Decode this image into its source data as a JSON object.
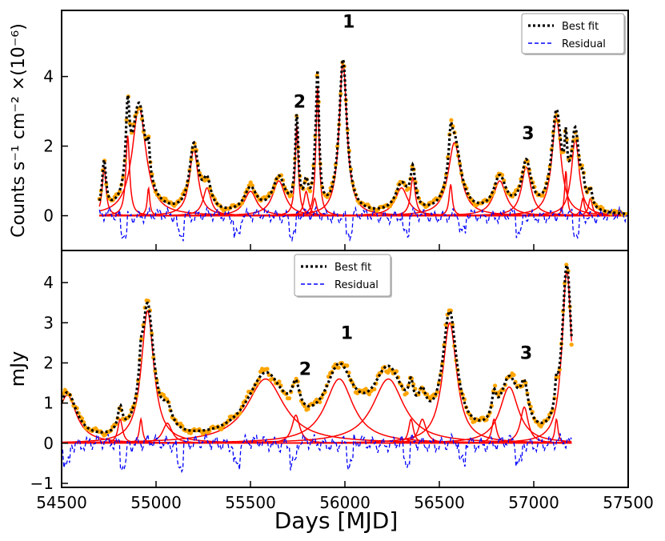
{
  "chart_data": [
    {
      "type": "line",
      "panel": "top",
      "ylabel": "Counts s⁻¹ cm⁻² ×(10⁻⁶)",
      "xlim": [
        54500,
        57500
      ],
      "ylim": [
        -1.0,
        5.9
      ],
      "yticks": [
        0,
        2,
        4
      ],
      "legend": {
        "placement": "top-right",
        "entries": [
          "Best fit",
          "Residual"
        ]
      },
      "colors": {
        "best_fit": "#000000",
        "residual": "#0000ff",
        "components": "#ff0000",
        "data": "#ffa500"
      },
      "annotations": [
        {
          "text": "1",
          "x": 56020,
          "y": 5.4
        },
        {
          "text": "2",
          "x": 55760,
          "y": 3.1
        },
        {
          "text": "3",
          "x": 56970,
          "y": 2.2
        }
      ],
      "baseline": 0.0,
      "flares": [
        {
          "t": 54725,
          "a": 1.4,
          "w": 12
        },
        {
          "t": 54850,
          "a": 2.3,
          "w": 12
        },
        {
          "t": 54910,
          "a": 3.1,
          "w": 45
        },
        {
          "t": 54960,
          "a": 0.8,
          "w": 8
        },
        {
          "t": 55200,
          "a": 1.9,
          "w": 28
        },
        {
          "t": 55270,
          "a": 0.8,
          "w": 25
        },
        {
          "t": 55500,
          "a": 0.7,
          "w": 40
        },
        {
          "t": 55650,
          "a": 1.0,
          "w": 40
        },
        {
          "t": 55745,
          "a": 2.6,
          "w": 10
        },
        {
          "t": 55795,
          "a": 0.7,
          "w": 15
        },
        {
          "t": 55840,
          "a": 0.5,
          "w": 12
        },
        {
          "t": 55855,
          "a": 3.7,
          "w": 10
        },
        {
          "t": 55990,
          "a": 4.4,
          "w": 25
        },
        {
          "t": 56300,
          "a": 0.8,
          "w": 40
        },
        {
          "t": 56360,
          "a": 1.1,
          "w": 15
        },
        {
          "t": 56560,
          "a": 0.9,
          "w": 10
        },
        {
          "t": 56580,
          "a": 2.1,
          "w": 40
        },
        {
          "t": 56820,
          "a": 1.0,
          "w": 40
        },
        {
          "t": 56960,
          "a": 1.4,
          "w": 30
        },
        {
          "t": 57120,
          "a": 2.8,
          "w": 30
        },
        {
          "t": 57170,
          "a": 1.3,
          "w": 8
        },
        {
          "t": 57220,
          "a": 2.2,
          "w": 25
        },
        {
          "t": 57260,
          "a": 0.5,
          "w": 10
        },
        {
          "t": 57300,
          "a": 0.5,
          "w": 12
        }
      ],
      "data_range": [
        54700,
        57500
      ],
      "residual_range": [
        54700,
        57500
      ]
    },
    {
      "type": "line",
      "panel": "bottom",
      "xlabel": "Days [MJD]",
      "ylabel": "mJy",
      "xlim": [
        54500,
        57500
      ],
      "ylim": [
        -1.1,
        4.8
      ],
      "xticks": [
        54500,
        55000,
        55500,
        56000,
        56500,
        57000,
        57500
      ],
      "yticks": [
        -1,
        0,
        1,
        2,
        3,
        4
      ],
      "legend": {
        "placement": "top-center",
        "entries": [
          "Best fit",
          "Residual"
        ]
      },
      "colors": {
        "best_fit": "#000000",
        "residual": "#0000ff",
        "components": "#ff0000",
        "data": "#ffa500"
      },
      "annotations": [
        {
          "text": "1",
          "x": 56010,
          "y": 2.6
        },
        {
          "text": "2",
          "x": 55790,
          "y": 1.7
        },
        {
          "text": "3",
          "x": 56960,
          "y": 2.1
        }
      ],
      "baseline": 0.0,
      "flares": [
        {
          "t": 54530,
          "a": 1.2,
          "w": 60
        },
        {
          "t": 54810,
          "a": 0.6,
          "w": 15
        },
        {
          "t": 54920,
          "a": 0.6,
          "w": 10
        },
        {
          "t": 54955,
          "a": 3.3,
          "w": 40
        },
        {
          "t": 55060,
          "a": 0.5,
          "w": 30
        },
        {
          "t": 55580,
          "a": 1.6,
          "w": 120
        },
        {
          "t": 55740,
          "a": 0.7,
          "w": 25
        },
        {
          "t": 55970,
          "a": 1.6,
          "w": 90
        },
        {
          "t": 56230,
          "a": 1.6,
          "w": 100
        },
        {
          "t": 56350,
          "a": 0.6,
          "w": 15
        },
        {
          "t": 56410,
          "a": 0.6,
          "w": 25
        },
        {
          "t": 56555,
          "a": 3.0,
          "w": 45
        },
        {
          "t": 56790,
          "a": 0.6,
          "w": 15
        },
        {
          "t": 56870,
          "a": 1.4,
          "w": 60
        },
        {
          "t": 56950,
          "a": 0.9,
          "w": 25
        },
        {
          "t": 57120,
          "a": 0.6,
          "w": 10
        },
        {
          "t": 57175,
          "a": 4.3,
          "w": 30
        }
      ],
      "data_range": [
        54500,
        57200
      ],
      "residual_range": [
        54500,
        57200
      ]
    }
  ]
}
